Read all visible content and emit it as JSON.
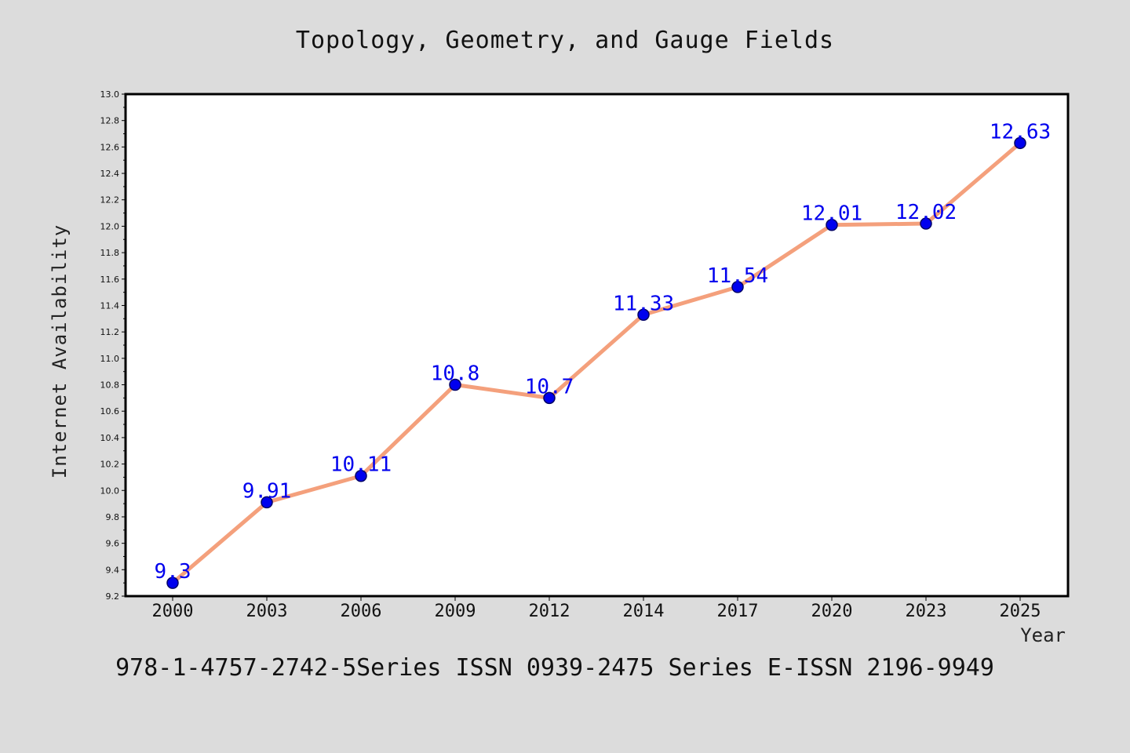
{
  "chart_data": {
    "type": "line",
    "title": "Topology, Geometry, and Gauge Fields",
    "xlabel": "Year",
    "ylabel": "Internet Availability",
    "categories": [
      "2000",
      "2003",
      "2006",
      "2009",
      "2012",
      "2014",
      "2017",
      "2020",
      "2023",
      "2025"
    ],
    "series": [
      {
        "values": [
          9.3,
          9.91,
          10.11,
          10.8,
          10.7,
          11.33,
          11.54,
          12.01,
          12.02,
          12.63
        ]
      }
    ],
    "data_labels": [
      "9.3",
      "9.91",
      "10.11",
      "10.8",
      "10.7",
      "11.33",
      "11.54",
      "12.01",
      "12.02",
      "12.63"
    ],
    "ylim": [
      9.2,
      13.0
    ],
    "y_ticks": [
      "9.2",
      "9.4",
      "9.6",
      "9.8",
      "10.0",
      "10.2",
      "10.4",
      "10.6",
      "10.8",
      "11.0",
      "11.2",
      "11.4",
      "11.6",
      "11.8",
      "12.0",
      "12.2",
      "12.4",
      "12.6",
      "12.8",
      "13.0"
    ],
    "grid": false,
    "colors": {
      "line": "#f4a07c",
      "marker": "#0000ee",
      "marker_edge": "#000066",
      "data_label": "#0000ee",
      "background": "#dcdcdc",
      "plot_background": "#ffffff"
    }
  },
  "footer": "978-1-4757-2742-5Series ISSN 0939-2475 Series E-ISSN 2196-9949"
}
